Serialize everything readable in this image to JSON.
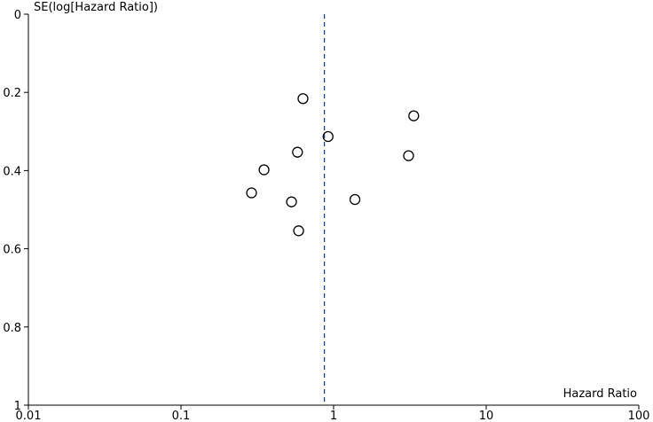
{
  "chart_data": {
    "type": "scatter",
    "title": "",
    "xlabel": "Hazard Ratio",
    "ylabel": "SE(log[Hazard Ratio])",
    "x_scale": "log",
    "xlim": [
      0.01,
      100
    ],
    "ylim": [
      0,
      1
    ],
    "y_inverted": true,
    "x_ticks": [
      0.01,
      0.1,
      1,
      10,
      100
    ],
    "x_tick_labels": [
      "0.01",
      "0.1",
      "1",
      "10",
      "100"
    ],
    "y_ticks": [
      0,
      0.2,
      0.4,
      0.6,
      0.8,
      1
    ],
    "y_tick_labels": [
      "0",
      "0.2",
      "0.4",
      "0.6",
      "0.8",
      "1"
    ],
    "reference_line": {
      "x": 0.87,
      "style": "dashed",
      "color": "#1f3f8f"
    },
    "points": [
      {
        "x": 0.63,
        "y": 0.216
      },
      {
        "x": 3.35,
        "y": 0.26
      },
      {
        "x": 0.92,
        "y": 0.313
      },
      {
        "x": 0.58,
        "y": 0.353
      },
      {
        "x": 3.1,
        "y": 0.362
      },
      {
        "x": 0.35,
        "y": 0.398
      },
      {
        "x": 0.29,
        "y": 0.457
      },
      {
        "x": 1.38,
        "y": 0.474
      },
      {
        "x": 0.53,
        "y": 0.48
      },
      {
        "x": 0.59,
        "y": 0.554
      }
    ],
    "grid": false,
    "legend": "none",
    "marker": "open-circle"
  }
}
